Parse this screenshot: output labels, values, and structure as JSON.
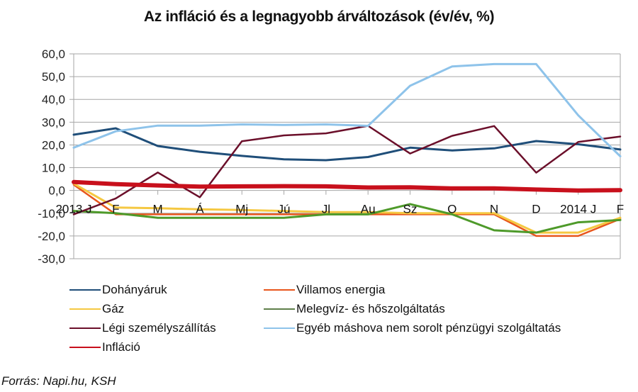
{
  "chart_data": {
    "type": "line",
    "title": "Az infláció és a legnagyobb árváltozások (év/év, %)",
    "xlabel": "",
    "ylabel": "",
    "ylim": [
      -30,
      60
    ],
    "yticks": [
      "60,0",
      "50,0",
      "40,0",
      "30,0",
      "20,0",
      "10,0",
      "0,0",
      "-10,0",
      "-20,0",
      "-30,0"
    ],
    "ytick_values": [
      60,
      50,
      40,
      30,
      20,
      10,
      0,
      -10,
      -20,
      -30
    ],
    "grid": true,
    "legend_position": "bottom",
    "categories": [
      "2013 J",
      "F",
      "M",
      "Á",
      "Mj",
      "Jú",
      "Jl",
      "Au",
      "Sz",
      "O",
      "N",
      "D",
      "2014 J",
      "F"
    ],
    "series": [
      {
        "name": "Dohányáruk",
        "color": "#1f4e79",
        "width": 3,
        "values": [
          24.5,
          27.3,
          19.5,
          17.0,
          15.2,
          13.7,
          13.3,
          14.7,
          18.8,
          17.6,
          18.5,
          21.7,
          20.3,
          18.0
        ]
      },
      {
        "name": "Villamos energia",
        "color": "#e8561c",
        "width": 2.5,
        "values": [
          2.5,
          -10.5,
          -10.5,
          -10.5,
          -10.5,
          -10.5,
          -10.5,
          -10.5,
          -10.5,
          -10.5,
          -10.5,
          -20.0,
          -20.0,
          -12.5
        ]
      },
      {
        "name": "Gáz",
        "color": "#f5c842",
        "width": 3,
        "values": [
          3.0,
          -7.5,
          -7.8,
          -8.3,
          -8.6,
          -9.0,
          -9.5,
          -9.5,
          -10.0,
          -10.0,
          -10.0,
          -18.5,
          -18.5,
          -12.0
        ]
      },
      {
        "name": "Melegvíz- és hőszolgáltatás",
        "color": "#4e9a2a",
        "width": 3,
        "values": [
          -9.0,
          -10.0,
          -12.0,
          -12.0,
          -12.0,
          -12.0,
          -10.5,
          -10.5,
          -6.0,
          -10.5,
          -17.5,
          -18.5,
          -14.0,
          -13.0
        ]
      },
      {
        "name": "Légi személyszállítás",
        "color": "#6b0f2a",
        "width": 2.5,
        "values": [
          -10.5,
          -3.5,
          7.9,
          -3.0,
          21.6,
          24.2,
          25.1,
          28.4,
          16.2,
          24.0,
          28.3,
          7.8,
          21.3,
          23.7
        ]
      },
      {
        "name": "Egyéb máshova nem sorolt pénzügyi szolgáltatás",
        "color": "#8ec3ea",
        "width": 3,
        "values": [
          18.8,
          26.0,
          28.5,
          28.5,
          29.0,
          28.8,
          29.0,
          28.4,
          46.0,
          54.5,
          55.5,
          55.5,
          33.0,
          15.0
        ]
      },
      {
        "name": "Infláció",
        "color": "#c8101c",
        "width": 6,
        "values": [
          3.7,
          2.8,
          2.2,
          1.7,
          1.8,
          1.9,
          1.8,
          1.3,
          1.4,
          0.9,
          0.9,
          0.4,
          0.0,
          0.1
        ]
      }
    ]
  },
  "legend": {
    "items": [
      {
        "label": "Dohányáruk",
        "color": "#1f4e79"
      },
      {
        "label": "Villamos energia",
        "color": "#e8561c"
      },
      {
        "label": "Gáz",
        "color": "#f5c842"
      },
      {
        "label": "Melegvíz- és hőszolgáltatás",
        "color": "#5f7f4a"
      },
      {
        "label": "Légi személyszállítás",
        "color": "#6b0f2a"
      },
      {
        "label": "Egyéb máshova nem sorolt pénzügyi szolgáltatás",
        "color": "#8ec3ea"
      },
      {
        "label": "Infláció",
        "color": "#c8101c"
      }
    ]
  },
  "source": "Forrás: Napi.hu, KSH"
}
